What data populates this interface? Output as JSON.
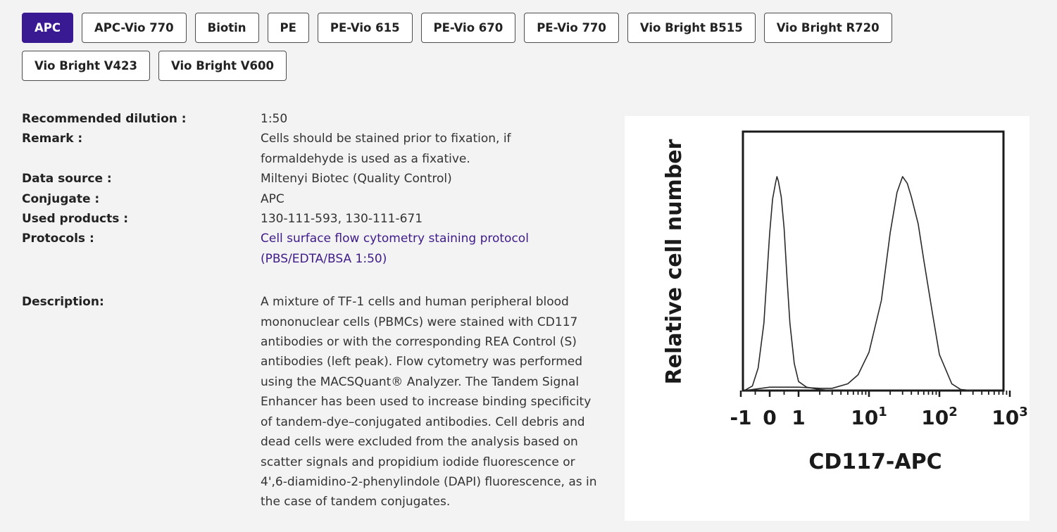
{
  "tabs": [
    {
      "label": "APC",
      "active": true
    },
    {
      "label": "APC-Vio 770",
      "active": false
    },
    {
      "label": "Biotin",
      "active": false
    },
    {
      "label": "PE",
      "active": false
    },
    {
      "label": "PE-Vio 615",
      "active": false
    },
    {
      "label": "PE-Vio 670",
      "active": false
    },
    {
      "label": "PE-Vio 770",
      "active": false
    },
    {
      "label": "Vio Bright B515",
      "active": false
    },
    {
      "label": "Vio Bright R720",
      "active": false
    },
    {
      "label": "Vio Bright V423",
      "active": false
    },
    {
      "label": "Vio Bright V600",
      "active": false
    }
  ],
  "details": {
    "dilution_label": "Recommended dilution :",
    "dilution_value": "1:50",
    "remark_label": "Remark :",
    "remark_value": "Cells should be stained prior to fixation, if formaldehyde is used as a fixative.",
    "source_label": "Data source :",
    "source_value": "Miltenyi Biotec (Quality Control)",
    "conjugate_label": "Conjugate :",
    "conjugate_value": "APC",
    "products_label": "Used products :",
    "products_value": "130-111-593, 130-111-671",
    "protocols_label": "Protocols :",
    "protocols_value": "Cell surface flow cytometry staining protocol (PBS/EDTA/BSA 1:50)",
    "description_label": "Description:",
    "description_value": "A mixture of TF-1 cells and human peripheral blood mononuclear cells (PBMCs) were stained with CD117 antibodies or with the corresponding REA Control (S) antibodies (left peak). Flow cytometry was performed using the MACSQuant® Analyzer. The Tandem Signal Enhancer has been used to increase binding specificity of tandem-dye–conjugated antibodies. Cell debris and dead cells were excluded from the analysis based on scatter signals and propidium iodide fluorescence or 4',6-diamidino-2-phenylindole (DAPI) fluorescence, as in the case of tandem conjugates."
  },
  "colors": {
    "accent": "#3a1a93",
    "link": "#3e1b88"
  },
  "chart_data": {
    "type": "line",
    "xlabel": "CD117-APC",
    "ylabel": "Relative cell number",
    "x_scale": "biexponential",
    "xlim": [
      -1,
      1000
    ],
    "x_ticks": [
      {
        "label": "-1",
        "value": -1
      },
      {
        "label": "0",
        "value": 0
      },
      {
        "label": "1",
        "value": 1
      },
      {
        "label": "10",
        "sup": "1",
        "value": 10
      },
      {
        "label": "10",
        "sup": "2",
        "value": 100
      },
      {
        "label": "10",
        "sup": "3",
        "value": 1000
      }
    ],
    "ylim": [
      0,
      1
    ],
    "grid": false,
    "legend": "none",
    "series": [
      {
        "x": [
          -1,
          -0.6,
          -0.4,
          -0.2,
          0,
          0.1,
          0.2,
          0.25,
          0.3,
          0.4,
          0.5,
          0.6,
          0.7,
          0.85,
          1,
          1.3,
          1.6,
          2,
          3
        ],
        "y": [
          0,
          0.02,
          0.1,
          0.3,
          0.7,
          0.85,
          0.92,
          0.95,
          0.93,
          0.86,
          0.72,
          0.5,
          0.3,
          0.12,
          0.04,
          0.015,
          0.01,
          0.005,
          0
        ]
      },
      {
        "x": [
          -1,
          0,
          1,
          2,
          3,
          5,
          7,
          10,
          15,
          20,
          25,
          30,
          35,
          40,
          50,
          60,
          80,
          100,
          150,
          200,
          300
        ],
        "y": [
          0,
          0.015,
          0.015,
          0.01,
          0.01,
          0.03,
          0.07,
          0.17,
          0.4,
          0.7,
          0.88,
          0.95,
          0.92,
          0.86,
          0.74,
          0.58,
          0.34,
          0.16,
          0.03,
          0.005,
          0
        ]
      }
    ]
  }
}
